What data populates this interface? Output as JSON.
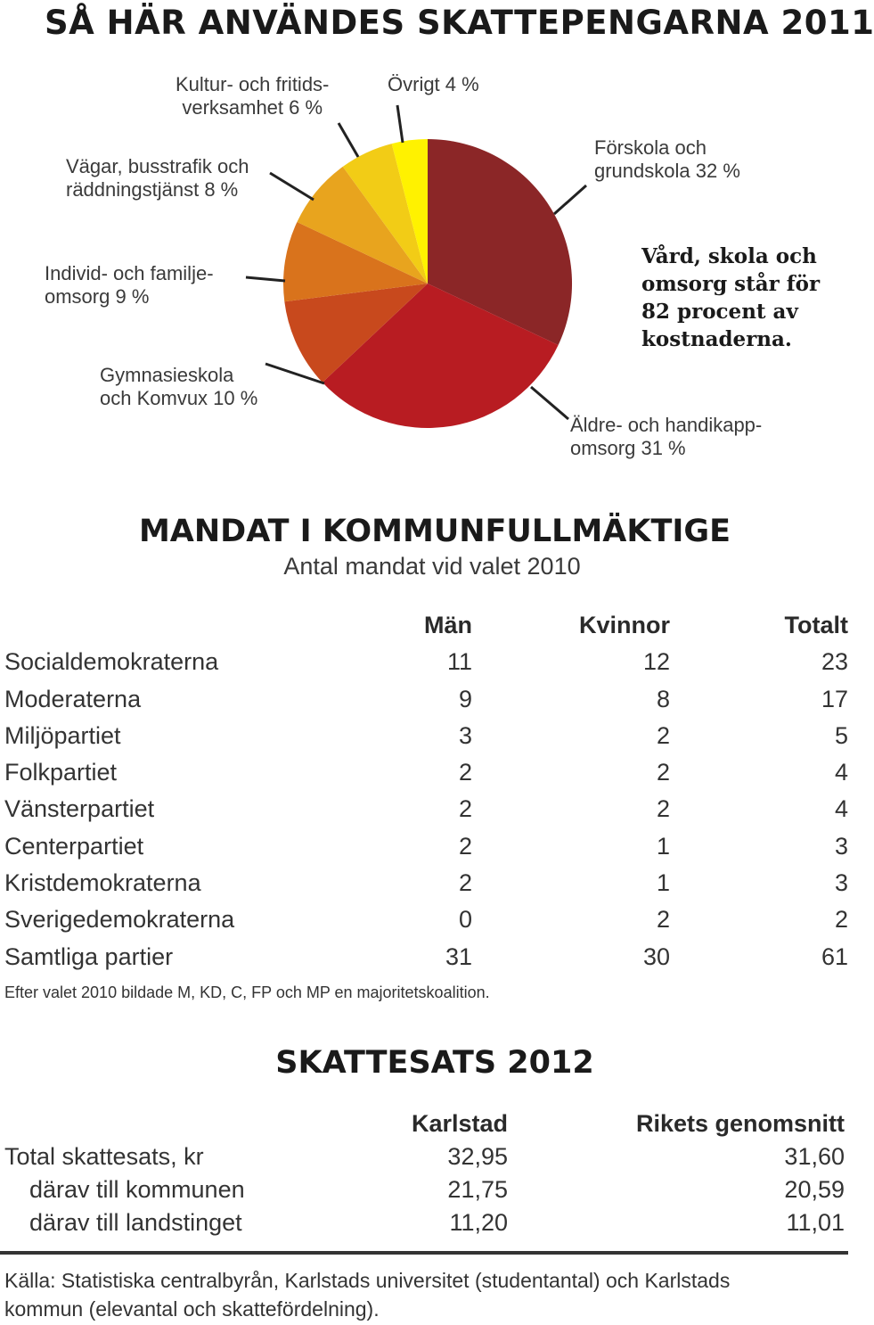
{
  "title": "SÅ HÄR ANVÄNDES SKATTEPENGARNA 2011",
  "chart_data": {
    "type": "pie",
    "title": "SÅ HÄR ANVÄNDES SKATTEPENGARNA 2011",
    "slices": [
      {
        "label": "Förskola och\ngrundskola 32 %",
        "value": 32,
        "color": "#8b2627"
      },
      {
        "label": "Äldre- och handikapp-\nomsorg 31 %",
        "value": 31,
        "color": "#b81c22"
      },
      {
        "label": "Gymnasieskola\noch Komvux 10 %",
        "value": 10,
        "color": "#c8491d"
      },
      {
        "label": "Individ- och familje-\nomsorg 9 %",
        "value": 9,
        "color": "#d9731c"
      },
      {
        "label": "Vägar, busstrafik och\nräddningstjänst 8 %",
        "value": 8,
        "color": "#e8a41e"
      },
      {
        "label": "Kultur- och fritids-\nverksamhet 6 %",
        "value": 6,
        "color": "#f2cc16"
      },
      {
        "label": "Övrigt 4 %",
        "value": 4,
        "color": "#fff200"
      }
    ],
    "annotation": "Vård, skola och\nomsorg står för\n82 procent av\nkostnaderna."
  },
  "seats": {
    "title": "MANDAT I KOMMUNFULLMÄKTIGE",
    "subtitle": "Antal mandat vid valet 2010",
    "headers": {
      "party": "",
      "men": "Män",
      "women": "Kvinnor",
      "total": "Totalt"
    },
    "rows": [
      {
        "party": "Socialdemokraterna",
        "men": "11",
        "women": "12",
        "total": "23"
      },
      {
        "party": "Moderaterna",
        "men": "9",
        "women": "8",
        "total": "17"
      },
      {
        "party": "Miljöpartiet",
        "men": "3",
        "women": "2",
        "total": "5"
      },
      {
        "party": "Folkpartiet",
        "men": "2",
        "women": "2",
        "total": "4"
      },
      {
        "party": "Vänsterpartiet",
        "men": "2",
        "women": "2",
        "total": "4"
      },
      {
        "party": "Centerpartiet",
        "men": "2",
        "women": "1",
        "total": "3"
      },
      {
        "party": "Kristdemokraterna",
        "men": "2",
        "women": "1",
        "total": "3"
      },
      {
        "party": "Sverigedemokraterna",
        "men": "0",
        "women": "2",
        "total": "2"
      },
      {
        "party": "Samtliga partier",
        "men": "31",
        "women": "30",
        "total": "61"
      }
    ],
    "note": "Efter valet 2010 bildade M, KD, C, FP och MP en majoritetskoalition."
  },
  "tax": {
    "title": "SKATTESATS 2012",
    "headers": {
      "karlstad": "Karlstad",
      "average": "Rikets genomsnitt"
    },
    "rows": [
      {
        "label": "Total skattesats, kr",
        "karlstad": "32,95",
        "average": "31,60"
      },
      {
        "label": "därav till kommunen",
        "karlstad": "21,75",
        "average": "20,59"
      },
      {
        "label": "därav till landstinget",
        "karlstad": "11,20",
        "average": "11,01"
      }
    ]
  },
  "source": "Källa: Statistiska centralbyrån, Karlstads universitet (studentantal) och Karlstads kommun (elevantal och skattefördelning)."
}
